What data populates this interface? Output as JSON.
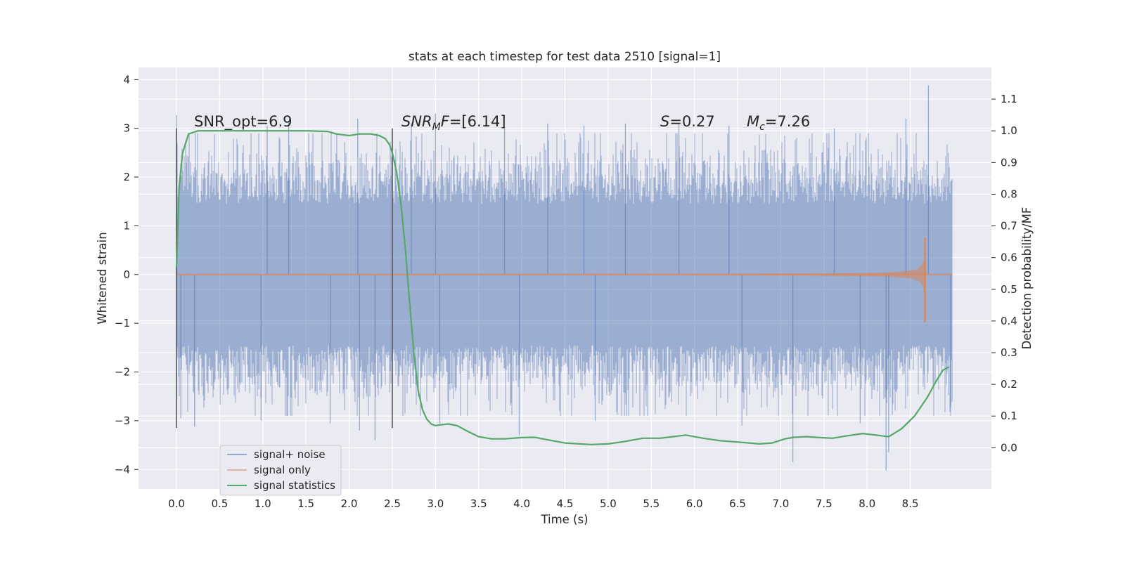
{
  "chart_data": {
    "type": "line",
    "title": "stats at each timestep for test data 2510 [signal=1]",
    "xlabel": "Time (s)",
    "ylabel": "Whitened strain",
    "ylabel_right": "Detection probability/MF",
    "xlim": [
      -0.44,
      9.44
    ],
    "ylim": [
      -4.4,
      4.25
    ],
    "ylim_right": [
      -0.13,
      1.2
    ],
    "x_ticks": [
      0.0,
      0.5,
      1.0,
      1.5,
      2.0,
      2.5,
      3.0,
      3.5,
      4.0,
      4.5,
      5.0,
      5.5,
      6.0,
      6.5,
      7.0,
      7.5,
      8.0,
      8.5
    ],
    "x_tick_labels": [
      "0.0",
      "0.5",
      "1.0",
      "1.5",
      "2.0",
      "2.5",
      "3.0",
      "3.5",
      "4.0",
      "4.5",
      "5.0",
      "5.5",
      "6.0",
      "6.5",
      "7.0",
      "7.5",
      "8.0",
      "8.5"
    ],
    "y_ticks": [
      -4,
      -3,
      -2,
      -1,
      0,
      1,
      2,
      3,
      4
    ],
    "y_tick_labels": [
      "−4",
      "−3",
      "−2",
      "−1",
      "0",
      "1",
      "2",
      "3",
      "4"
    ],
    "y_ticks_right": [
      0.0,
      0.1,
      0.2,
      0.3,
      0.4,
      0.5,
      0.6,
      0.7,
      0.8,
      0.9,
      1.0,
      1.1
    ],
    "y_tick_labels_right": [
      "0.0",
      "0.1",
      "0.2",
      "0.3",
      "0.4",
      "0.5",
      "0.6",
      "0.7",
      "0.8",
      "0.9",
      "1.0",
      "1.1"
    ],
    "grid": true,
    "legend_position": "lower-left",
    "annotations": [
      {
        "id": "snr-opt",
        "text": "SNR_opt=6.9",
        "x": 0.2,
        "y": 3.0
      },
      {
        "id": "snr-mf",
        "text": "SNR_MF=[6.14]",
        "x": 2.6,
        "y": 3.0
      },
      {
        "id": "s-value",
        "text": "S=0.27",
        "x": 5.6,
        "y": 3.0
      },
      {
        "id": "mc-value",
        "text": "M_c=7.26",
        "x": 6.6,
        "y": 3.0
      }
    ],
    "vertical_lines": [
      {
        "x": 0.0,
        "y_from": -3.15,
        "y_to": 3.0
      },
      {
        "x": 2.5,
        "y_from": -3.15,
        "y_to": 3.0
      }
    ],
    "series": [
      {
        "name": "signal+ noise",
        "color": "#4c72b0",
        "style": "noise",
        "x_start": 0.0,
        "x_end": 8.99,
        "typical_abs_max": 2.2,
        "spikes": [
          {
            "x": 0.0,
            "y": 3.27
          },
          {
            "x": 0.05,
            "y": -2.95
          },
          {
            "x": 0.21,
            "y": -3.12
          },
          {
            "x": 0.98,
            "y": -3.0
          },
          {
            "x": 1.05,
            "y": 3.05
          },
          {
            "x": 1.3,
            "y": 3.15
          },
          {
            "x": 1.78,
            "y": -3.05
          },
          {
            "x": 2.1,
            "y": 3.2
          },
          {
            "x": 2.12,
            "y": -3.2
          },
          {
            "x": 2.3,
            "y": -3.4
          },
          {
            "x": 2.72,
            "y": 3.1
          },
          {
            "x": 3.0,
            "y": 3.3
          },
          {
            "x": 3.05,
            "y": -3.05
          },
          {
            "x": 3.8,
            "y": 3.0
          },
          {
            "x": 3.97,
            "y": -3.3
          },
          {
            "x": 4.3,
            "y": 3.1
          },
          {
            "x": 4.72,
            "y": 3.05
          },
          {
            "x": 4.85,
            "y": -3.0
          },
          {
            "x": 5.2,
            "y": 3.1
          },
          {
            "x": 5.82,
            "y": 3.1
          },
          {
            "x": 6.4,
            "y": 3.05
          },
          {
            "x": 6.55,
            "y": -3.1
          },
          {
            "x": 7.14,
            "y": -3.85
          },
          {
            "x": 7.62,
            "y": 3.0
          },
          {
            "x": 7.92,
            "y": -3.05
          },
          {
            "x": 8.22,
            "y": -4.02
          },
          {
            "x": 8.25,
            "y": -3.65
          },
          {
            "x": 8.45,
            "y": 3.2
          },
          {
            "x": 8.71,
            "y": 3.88
          },
          {
            "x": 8.97,
            "y": -2.72
          }
        ]
      },
      {
        "name": "signal only",
        "color": "#dd8452",
        "style": "chirp",
        "x_start": 0.0,
        "x_end": 8.99,
        "merger_x": 8.67,
        "peak_positive": 0.75,
        "peak_negative": -0.98
      },
      {
        "name": "signal statistics",
        "color": "#55a868",
        "axis": "right",
        "x": [
          0.0,
          0.03,
          0.07,
          0.14,
          0.25,
          0.5,
          1.0,
          1.5,
          1.75,
          1.85,
          2.0,
          2.12,
          2.25,
          2.35,
          2.42,
          2.47,
          2.5,
          2.55,
          2.6,
          2.65,
          2.7,
          2.75,
          2.8,
          2.85,
          2.9,
          2.95,
          3.0,
          3.05,
          3.15,
          3.25,
          3.35,
          3.5,
          3.65,
          3.8,
          4.0,
          4.15,
          4.3,
          4.5,
          4.8,
          5.0,
          5.2,
          5.4,
          5.6,
          5.75,
          5.9,
          6.1,
          6.3,
          6.5,
          6.75,
          6.9,
          7.05,
          7.15,
          7.3,
          7.45,
          7.6,
          7.75,
          7.95,
          8.1,
          8.25,
          8.4,
          8.55,
          8.7,
          8.8,
          8.88,
          8.95
        ],
        "values": [
          0.57,
          0.82,
          0.93,
          0.99,
          1.0,
          1.0,
          1.0,
          1.0,
          0.998,
          0.99,
          0.985,
          0.99,
          0.99,
          0.985,
          0.975,
          0.955,
          0.93,
          0.87,
          0.77,
          0.63,
          0.46,
          0.3,
          0.18,
          0.12,
          0.09,
          0.075,
          0.07,
          0.072,
          0.075,
          0.07,
          0.055,
          0.035,
          0.028,
          0.028,
          0.032,
          0.033,
          0.025,
          0.015,
          0.01,
          0.012,
          0.02,
          0.03,
          0.03,
          0.035,
          0.04,
          0.03,
          0.022,
          0.018,
          0.012,
          0.015,
          0.028,
          0.033,
          0.035,
          0.032,
          0.03,
          0.037,
          0.045,
          0.04,
          0.035,
          0.06,
          0.1,
          0.16,
          0.21,
          0.245,
          0.255
        ]
      }
    ]
  }
}
